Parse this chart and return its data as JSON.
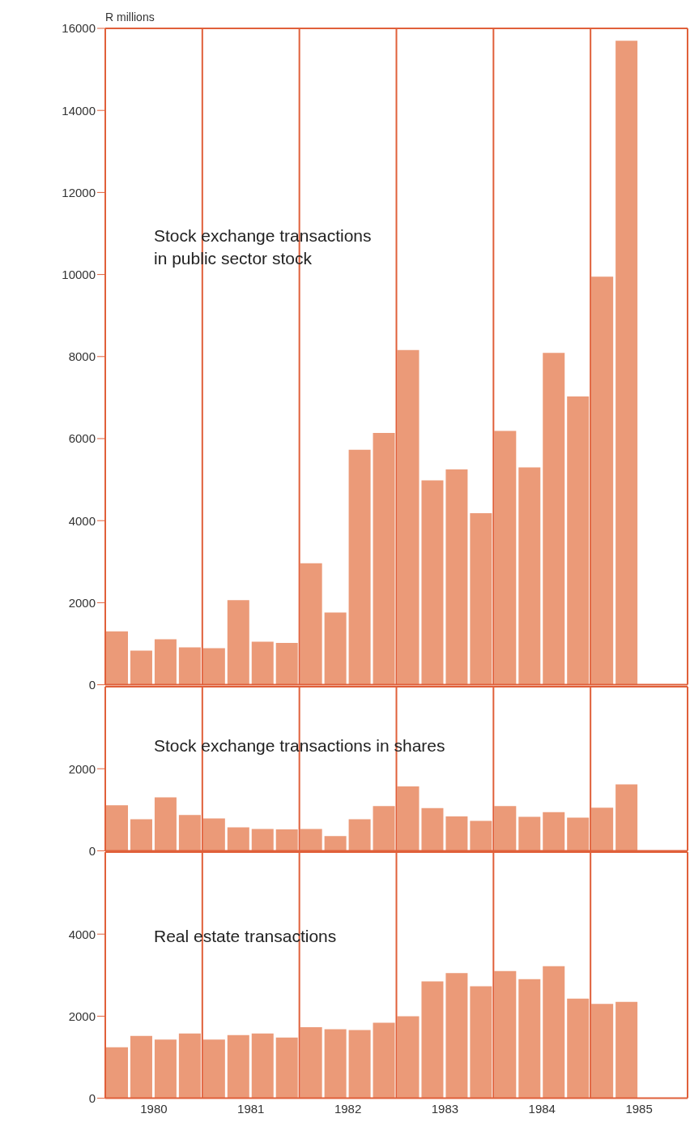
{
  "chart_data": [
    {
      "type": "bar",
      "title": "Stock exchange transactions\nin public sector stock",
      "ylabel": "R millions",
      "color": "#eb9a78",
      "tick_labels": "y",
      "xlim": [
        1980,
        1986
      ],
      "ylim": [
        0,
        16000
      ],
      "yticks": [
        0,
        2000,
        4000,
        6000,
        8000,
        10000,
        12000,
        14000,
        16000
      ],
      "x": [
        1980.125,
        1980.375,
        1980.625,
        1980.875,
        1981.125,
        1981.375,
        1981.625,
        1981.875,
        1982.125,
        1982.375,
        1982.625,
        1982.875,
        1983.125,
        1983.375,
        1983.625,
        1983.875,
        1984.125,
        1984.375,
        1984.625,
        1984.875,
        1985.125,
        1985.375
      ],
      "values": [
        1300,
        830,
        1110,
        910,
        890,
        2060,
        1050,
        1020,
        2960,
        1760,
        5730,
        6140,
        8160,
        4980,
        5250,
        4180,
        6190,
        5300,
        8090,
        7030,
        9950,
        15700
      ],
      "ref_lines": [
        {
          "axis": "x",
          "value": 1981,
          "color": "#e0603a"
        },
        {
          "axis": "x",
          "value": 1982,
          "color": "#e0603a"
        },
        {
          "axis": "x",
          "value": 1983,
          "color": "#e0603a"
        },
        {
          "axis": "x",
          "value": 1984,
          "color": "#e0603a"
        },
        {
          "axis": "x",
          "value": 1985,
          "color": "#e0603a"
        }
      ]
    },
    {
      "type": "bar",
      "title": "Stock exchange transactions in shares",
      "color": "#eb9a78",
      "tick_labels": "y",
      "xlim": [
        1980,
        1986
      ],
      "ylim": [
        0,
        4000
      ],
      "yticks": [
        0,
        2000
      ],
      "x": [
        1980.125,
        1980.375,
        1980.625,
        1980.875,
        1981.125,
        1981.375,
        1981.625,
        1981.875,
        1982.125,
        1982.375,
        1982.625,
        1982.875,
        1983.125,
        1983.375,
        1983.625,
        1983.875,
        1984.125,
        1984.375,
        1984.625,
        1984.875,
        1985.125,
        1985.375
      ],
      "values": [
        1110,
        770,
        1300,
        870,
        790,
        570,
        530,
        520,
        530,
        360,
        770,
        1090,
        1570,
        1040,
        840,
        730,
        1090,
        830,
        940,
        810,
        1050,
        1620
      ],
      "ref_lines": [
        {
          "axis": "x",
          "value": 1981,
          "color": "#e0603a"
        },
        {
          "axis": "x",
          "value": 1982,
          "color": "#e0603a"
        },
        {
          "axis": "x",
          "value": 1983,
          "color": "#e0603a"
        },
        {
          "axis": "x",
          "value": 1984,
          "color": "#e0603a"
        },
        {
          "axis": "x",
          "value": 1985,
          "color": "#e0603a"
        }
      ]
    },
    {
      "type": "bar",
      "title": "Real estate transactions",
      "color": "#eb9a78",
      "xlim": [
        1980,
        1986
      ],
      "xticks": [
        {
          "value": 1980.5,
          "label": "1980"
        },
        {
          "value": 1981.5,
          "label": "1981"
        },
        {
          "value": 1982.5,
          "label": "1982"
        },
        {
          "value": 1983.5,
          "label": "1983"
        },
        {
          "value": 1984.5,
          "label": "1984"
        },
        {
          "value": 1985.5,
          "label": "1985"
        }
      ],
      "ylim": [
        0,
        6000
      ],
      "yticks": [
        0,
        2000,
        4000
      ],
      "x": [
        1980.125,
        1980.375,
        1980.625,
        1980.875,
        1981.125,
        1981.375,
        1981.625,
        1981.875,
        1982.125,
        1982.375,
        1982.625,
        1982.875,
        1983.125,
        1983.375,
        1983.625,
        1983.875,
        1984.125,
        1984.375,
        1984.625,
        1984.875,
        1985.125,
        1985.375
      ],
      "values": [
        1240,
        1520,
        1430,
        1580,
        1430,
        1540,
        1580,
        1480,
        1730,
        1680,
        1660,
        1840,
        2000,
        2850,
        3050,
        2730,
        3100,
        2900,
        3220,
        2430,
        2300,
        2350
      ],
      "ref_lines": [
        {
          "axis": "x",
          "value": 1981,
          "color": "#e0603a"
        },
        {
          "axis": "x",
          "value": 1982,
          "color": "#e0603a"
        },
        {
          "axis": "x",
          "value": 1983,
          "color": "#e0603a"
        },
        {
          "axis": "x",
          "value": 1984,
          "color": "#e0603a"
        },
        {
          "axis": "x",
          "value": 1985,
          "color": "#e0603a"
        }
      ]
    }
  ]
}
